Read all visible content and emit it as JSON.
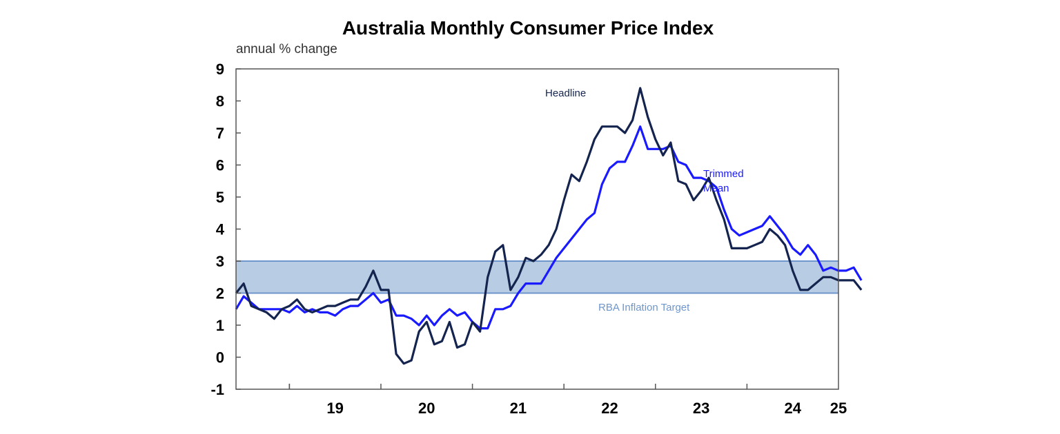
{
  "chart_data": {
    "type": "line",
    "title": "Australia Monthly Consumer Price Index",
    "unit_label": "annual % change",
    "ylim": [
      -1,
      9
    ],
    "y_ticks": [
      "9",
      "8",
      "7",
      "6",
      "5",
      "4",
      "3",
      "2",
      "1",
      "0",
      "-1"
    ],
    "x_ticks": [
      "19",
      "20",
      "21",
      "22",
      "23",
      "24",
      "25"
    ],
    "x_start": "2018-06",
    "x_end": "2025-01",
    "target_band": {
      "label": "RBA Inflation Target",
      "low": 2,
      "high": 3,
      "color": "#b8cce4",
      "line_color": "#6e96cc"
    },
    "series": [
      {
        "name": "Headline",
        "color": "#14244e",
        "points": [
          [
            "2018-06",
            2.0
          ],
          [
            "2018-07",
            2.3
          ],
          [
            "2018-08",
            1.6
          ],
          [
            "2018-09",
            1.5
          ],
          [
            "2018-10",
            1.4
          ],
          [
            "2018-11",
            1.2
          ],
          [
            "2018-12",
            1.5
          ],
          [
            "2019-01",
            1.6
          ],
          [
            "2019-02",
            1.8
          ],
          [
            "2019-03",
            1.5
          ],
          [
            "2019-04",
            1.4
          ],
          [
            "2019-05",
            1.5
          ],
          [
            "2019-06",
            1.6
          ],
          [
            "2019-07",
            1.6
          ],
          [
            "2019-08",
            1.7
          ],
          [
            "2019-09",
            1.8
          ],
          [
            "2019-10",
            1.8
          ],
          [
            "2019-11",
            2.2
          ],
          [
            "2019-12",
            2.7
          ],
          [
            "2020-01",
            2.1
          ],
          [
            "2020-02",
            2.1
          ],
          [
            "2020-03",
            0.1
          ],
          [
            "2020-04",
            -0.2
          ],
          [
            "2020-05",
            -0.1
          ],
          [
            "2020-06",
            0.8
          ],
          [
            "2020-07",
            1.1
          ],
          [
            "2020-08",
            0.4
          ],
          [
            "2020-09",
            0.5
          ],
          [
            "2020-10",
            1.1
          ],
          [
            "2020-11",
            0.3
          ],
          [
            "2020-12",
            0.4
          ],
          [
            "2021-01",
            1.1
          ],
          [
            "2021-02",
            0.8
          ],
          [
            "2021-03",
            2.5
          ],
          [
            "2021-04",
            3.3
          ],
          [
            "2021-05",
            3.5
          ],
          [
            "2021-06",
            2.1
          ],
          [
            "2021-07",
            2.5
          ],
          [
            "2021-08",
            3.1
          ],
          [
            "2021-09",
            3.0
          ],
          [
            "2021-10",
            3.2
          ],
          [
            "2021-11",
            3.5
          ],
          [
            "2021-12",
            4.0
          ],
          [
            "2022-01",
            4.9
          ],
          [
            "2022-02",
            5.7
          ],
          [
            "2022-03",
            5.5
          ],
          [
            "2022-04",
            6.1
          ],
          [
            "2022-05",
            6.8
          ],
          [
            "2022-06",
            7.2
          ],
          [
            "2022-07",
            7.2
          ],
          [
            "2022-08",
            7.2
          ],
          [
            "2022-09",
            7.0
          ],
          [
            "2022-10",
            7.4
          ],
          [
            "2022-11",
            8.4
          ],
          [
            "2022-12",
            7.5
          ],
          [
            "2023-01",
            6.8
          ],
          [
            "2023-02",
            6.3
          ],
          [
            "2023-03",
            6.7
          ],
          [
            "2023-04",
            5.5
          ],
          [
            "2023-05",
            5.4
          ],
          [
            "2023-06",
            4.9
          ],
          [
            "2023-07",
            5.2
          ],
          [
            "2023-08",
            5.6
          ],
          [
            "2023-09",
            4.9
          ],
          [
            "2023-10",
            4.3
          ],
          [
            "2023-11",
            3.4
          ],
          [
            "2023-12",
            3.4
          ],
          [
            "2024-01",
            3.4
          ],
          [
            "2024-02",
            3.5
          ],
          [
            "2024-03",
            3.6
          ],
          [
            "2024-04",
            4.0
          ],
          [
            "2024-05",
            3.8
          ],
          [
            "2024-06",
            3.5
          ],
          [
            "2024-07",
            2.7
          ],
          [
            "2024-08",
            2.1
          ],
          [
            "2024-09",
            2.1
          ],
          [
            "2024-10",
            2.3
          ],
          [
            "2024-11",
            2.5
          ],
          [
            "2024-12",
            2.5
          ],
          [
            "2025-01",
            2.4
          ],
          [
            "2025-02",
            2.4
          ],
          [
            "2025-03",
            2.4
          ],
          [
            "2025-04",
            2.1
          ]
        ]
      },
      {
        "name": "Trimmed\nMean",
        "color": "#1a1aff",
        "points": [
          [
            "2018-06",
            1.5
          ],
          [
            "2018-07",
            1.9
          ],
          [
            "2018-08",
            1.7
          ],
          [
            "2018-09",
            1.5
          ],
          [
            "2018-10",
            1.5
          ],
          [
            "2018-11",
            1.5
          ],
          [
            "2018-12",
            1.5
          ],
          [
            "2019-01",
            1.4
          ],
          [
            "2019-02",
            1.6
          ],
          [
            "2019-03",
            1.4
          ],
          [
            "2019-04",
            1.5
          ],
          [
            "2019-05",
            1.4
          ],
          [
            "2019-06",
            1.4
          ],
          [
            "2019-07",
            1.3
          ],
          [
            "2019-08",
            1.5
          ],
          [
            "2019-09",
            1.6
          ],
          [
            "2019-10",
            1.6
          ],
          [
            "2019-11",
            1.8
          ],
          [
            "2019-12",
            2.0
          ],
          [
            "2020-01",
            1.7
          ],
          [
            "2020-02",
            1.8
          ],
          [
            "2020-03",
            1.3
          ],
          [
            "2020-04",
            1.3
          ],
          [
            "2020-05",
            1.2
          ],
          [
            "2020-06",
            1.0
          ],
          [
            "2020-07",
            1.3
          ],
          [
            "2020-08",
            1.0
          ],
          [
            "2020-09",
            1.3
          ],
          [
            "2020-10",
            1.5
          ],
          [
            "2020-11",
            1.3
          ],
          [
            "2020-12",
            1.4
          ],
          [
            "2021-01",
            1.1
          ],
          [
            "2021-02",
            0.9
          ],
          [
            "2021-03",
            0.9
          ],
          [
            "2021-04",
            1.5
          ],
          [
            "2021-05",
            1.5
          ],
          [
            "2021-06",
            1.6
          ],
          [
            "2021-07",
            2.0
          ],
          [
            "2021-08",
            2.3
          ],
          [
            "2021-09",
            2.3
          ],
          [
            "2021-10",
            2.3
          ],
          [
            "2021-11",
            2.7
          ],
          [
            "2021-12",
            3.1
          ],
          [
            "2022-01",
            3.4
          ],
          [
            "2022-02",
            3.7
          ],
          [
            "2022-03",
            4.0
          ],
          [
            "2022-04",
            4.3
          ],
          [
            "2022-05",
            4.5
          ],
          [
            "2022-06",
            5.4
          ],
          [
            "2022-07",
            5.9
          ],
          [
            "2022-08",
            6.1
          ],
          [
            "2022-09",
            6.1
          ],
          [
            "2022-10",
            6.6
          ],
          [
            "2022-11",
            7.2
          ],
          [
            "2022-12",
            6.5
          ],
          [
            "2023-01",
            6.5
          ],
          [
            "2023-02",
            6.5
          ],
          [
            "2023-03",
            6.6
          ],
          [
            "2023-04",
            6.1
          ],
          [
            "2023-05",
            6.0
          ],
          [
            "2023-06",
            5.6
          ],
          [
            "2023-07",
            5.6
          ],
          [
            "2023-08",
            5.5
          ],
          [
            "2023-09",
            5.3
          ],
          [
            "2023-10",
            4.6
          ],
          [
            "2023-11",
            4.0
          ],
          [
            "2023-12",
            3.8
          ],
          [
            "2024-01",
            3.9
          ],
          [
            "2024-02",
            4.0
          ],
          [
            "2024-03",
            4.1
          ],
          [
            "2024-04",
            4.4
          ],
          [
            "2024-05",
            4.1
          ],
          [
            "2024-06",
            3.8
          ],
          [
            "2024-07",
            3.4
          ],
          [
            "2024-08",
            3.2
          ],
          [
            "2024-09",
            3.5
          ],
          [
            "2024-10",
            3.2
          ],
          [
            "2024-11",
            2.7
          ],
          [
            "2024-12",
            2.8
          ],
          [
            "2025-01",
            2.7
          ],
          [
            "2025-02",
            2.7
          ],
          [
            "2025-03",
            2.8
          ],
          [
            "2025-04",
            2.4
          ]
        ]
      }
    ],
    "annotations": [
      {
        "text": "Headline",
        "series": "Headline"
      },
      {
        "text": "Trimmed\nMean",
        "series": "Trimmed\nMean"
      },
      {
        "text": "RBA Inflation Target",
        "series": "band"
      }
    ]
  }
}
